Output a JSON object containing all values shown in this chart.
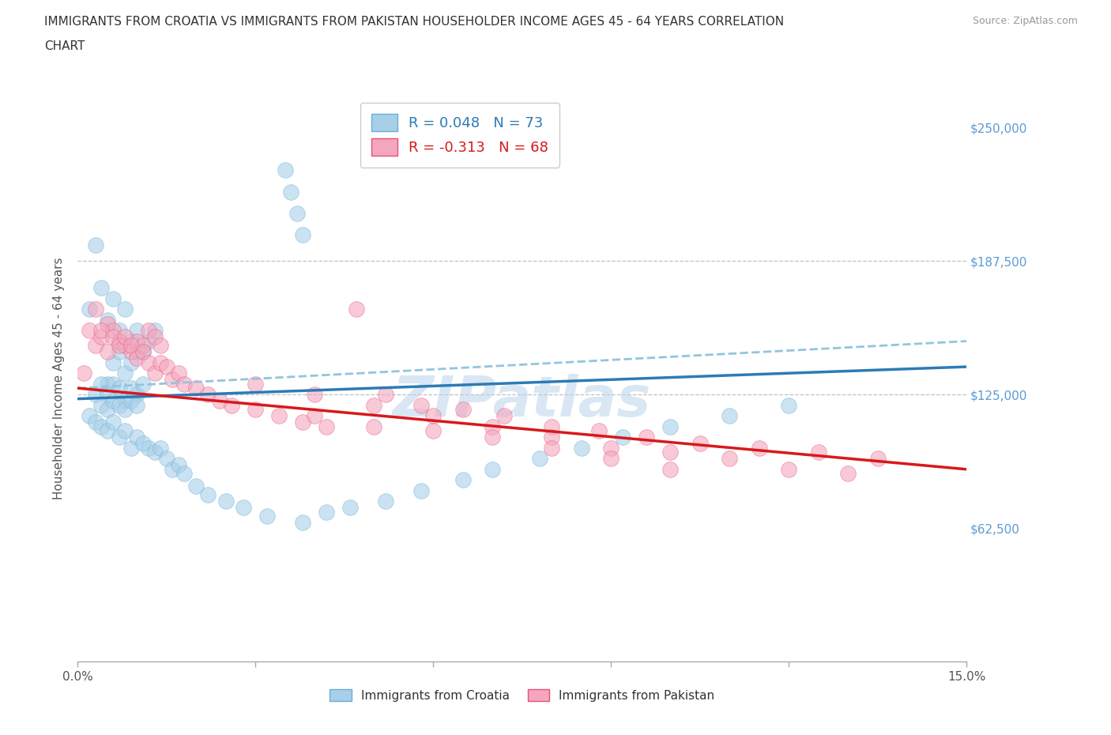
{
  "title_line1": "IMMIGRANTS FROM CROATIA VS IMMIGRANTS FROM PAKISTAN HOUSEHOLDER INCOME AGES 45 - 64 YEARS CORRELATION",
  "title_line2": "CHART",
  "source": "Source: ZipAtlas.com",
  "ylabel": "Householder Income Ages 45 - 64 years",
  "xlim": [
    0,
    0.15
  ],
  "ylim": [
    0,
    265000
  ],
  "xtick_vals": [
    0.0,
    0.03,
    0.06,
    0.09,
    0.12,
    0.15
  ],
  "xtick_labels": [
    "0.0%",
    "",
    "",
    "",
    "",
    "15.0%"
  ],
  "ytick_vals": [
    0,
    62500,
    125000,
    187500,
    250000
  ],
  "ytick_labels_right": [
    "",
    "$62,500",
    "$125,000",
    "$187,500",
    "$250,000"
  ],
  "hlines": [
    125000,
    187500
  ],
  "croatia_color": "#a8cfe8",
  "pakistan_color": "#f4a6bd",
  "croatia_edge_color": "#6aaed6",
  "pakistan_edge_color": "#e8507a",
  "croatia_line_color": "#2c7bb6",
  "croatia_dash_color": "#92c5de",
  "pakistan_line_color": "#d7191c",
  "R_croatia": 0.048,
  "N_croatia": 73,
  "R_pakistan": -0.313,
  "N_pakistan": 68,
  "background_color": "#ffffff",
  "watermark": "ZIPatlas",
  "croatia_label": "Immigrants from Croatia",
  "pakistan_label": "Immigrants from Pakistan",
  "legend1_label_croatia": "R = 0.048   N = 73",
  "legend1_label_pakistan": "R = -0.313   N = 68",
  "croatia_x": [
    0.002,
    0.003,
    0.004,
    0.005,
    0.006,
    0.007,
    0.008,
    0.009,
    0.01,
    0.011,
    0.012,
    0.013,
    0.005,
    0.006,
    0.007,
    0.008,
    0.009,
    0.01,
    0.003,
    0.004,
    0.005,
    0.006,
    0.007,
    0.008,
    0.009,
    0.01,
    0.011,
    0.004,
    0.005,
    0.006,
    0.007,
    0.008,
    0.009,
    0.01,
    0.002,
    0.003,
    0.004,
    0.005,
    0.006,
    0.007,
    0.008,
    0.009,
    0.01,
    0.011,
    0.012,
    0.013,
    0.014,
    0.015,
    0.016,
    0.017,
    0.018,
    0.02,
    0.022,
    0.025,
    0.028,
    0.032,
    0.038,
    0.042,
    0.046,
    0.052,
    0.058,
    0.065,
    0.07,
    0.078,
    0.085,
    0.092,
    0.1,
    0.11,
    0.12,
    0.035,
    0.036,
    0.037,
    0.038
  ],
  "croatia_y": [
    165000,
    195000,
    175000,
    160000,
    170000,
    155000,
    165000,
    150000,
    155000,
    145000,
    150000,
    155000,
    130000,
    140000,
    145000,
    135000,
    140000,
    145000,
    125000,
    130000,
    125000,
    130000,
    128000,
    122000,
    128000,
    125000,
    130000,
    120000,
    118000,
    122000,
    120000,
    118000,
    122000,
    120000,
    115000,
    112000,
    110000,
    108000,
    112000,
    105000,
    108000,
    100000,
    105000,
    102000,
    100000,
    98000,
    100000,
    95000,
    90000,
    92000,
    88000,
    82000,
    78000,
    75000,
    72000,
    68000,
    65000,
    70000,
    72000,
    75000,
    80000,
    85000,
    90000,
    95000,
    100000,
    105000,
    110000,
    115000,
    120000,
    230000,
    220000,
    210000,
    200000
  ],
  "pakistan_x": [
    0.001,
    0.002,
    0.003,
    0.004,
    0.005,
    0.006,
    0.007,
    0.008,
    0.009,
    0.01,
    0.011,
    0.012,
    0.013,
    0.014,
    0.003,
    0.004,
    0.005,
    0.006,
    0.007,
    0.008,
    0.009,
    0.01,
    0.011,
    0.012,
    0.013,
    0.014,
    0.015,
    0.016,
    0.017,
    0.018,
    0.02,
    0.022,
    0.024,
    0.026,
    0.03,
    0.034,
    0.038,
    0.042,
    0.047,
    0.052,
    0.058,
    0.065,
    0.072,
    0.08,
    0.088,
    0.096,
    0.105,
    0.115,
    0.125,
    0.135,
    0.03,
    0.04,
    0.05,
    0.06,
    0.07,
    0.08,
    0.09,
    0.1,
    0.11,
    0.12,
    0.13,
    0.04,
    0.05,
    0.06,
    0.07,
    0.08,
    0.09,
    0.1
  ],
  "pakistan_y": [
    135000,
    155000,
    148000,
    152000,
    158000,
    155000,
    150000,
    148000,
    145000,
    150000,
    148000,
    155000,
    152000,
    148000,
    165000,
    155000,
    145000,
    152000,
    148000,
    152000,
    148000,
    142000,
    145000,
    140000,
    135000,
    140000,
    138000,
    132000,
    135000,
    130000,
    128000,
    125000,
    122000,
    120000,
    118000,
    115000,
    112000,
    110000,
    165000,
    125000,
    120000,
    118000,
    115000,
    110000,
    108000,
    105000,
    102000,
    100000,
    98000,
    95000,
    130000,
    125000,
    120000,
    115000,
    110000,
    105000,
    100000,
    98000,
    95000,
    90000,
    88000,
    115000,
    110000,
    108000,
    105000,
    100000,
    95000,
    90000
  ]
}
